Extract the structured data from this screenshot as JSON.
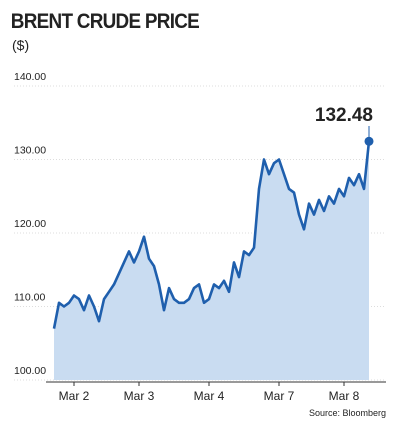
{
  "chart_data": {
    "type": "area",
    "title": "BRENT CRUDE PRICE",
    "subtitle": "($)",
    "source": "Source: Bloomberg",
    "categories": [
      null,
      null,
      null,
      null,
      "Mar 2",
      null,
      null,
      null,
      null,
      null,
      null,
      null,
      null,
      null,
      null,
      null,
      null,
      "Mar 3",
      null,
      null,
      null,
      null,
      null,
      null,
      null,
      null,
      null,
      null,
      null,
      null,
      null,
      "Mar 4",
      null,
      null,
      null,
      null,
      null,
      null,
      null,
      null,
      null,
      null,
      null,
      null,
      null,
      "Mar 7",
      null,
      null,
      null,
      null,
      null,
      null,
      null,
      null,
      null,
      null,
      null,
      null,
      "Mar 8",
      null,
      null,
      null,
      null,
      null
    ],
    "values": [
      107,
      110.5,
      110,
      110.5,
      111.5,
      111,
      109.5,
      111.5,
      110,
      108,
      111,
      112,
      113,
      114.5,
      116,
      117.5,
      116,
      117.5,
      119.5,
      116.5,
      115.5,
      113,
      109.5,
      112.5,
      111,
      110.5,
      110.5,
      111,
      112.5,
      113,
      110.5,
      111,
      113,
      112.5,
      113.5,
      112,
      116,
      114,
      117.5,
      117,
      118,
      126,
      130,
      128,
      129.5,
      130,
      128,
      126,
      125.5,
      122.5,
      120.5,
      124,
      122.5,
      124.5,
      123,
      125,
      124,
      126,
      125,
      127.5,
      126.5,
      128,
      126,
      132.48
    ],
    "color": "#1f5fad",
    "fill": "#c9dcf1",
    "ylim": [
      100,
      140
    ],
    "yticks": [
      {
        "value": 100,
        "label": "100.00"
      },
      {
        "value": 110,
        "label": "110.00"
      },
      {
        "value": 120,
        "label": "120.00"
      },
      {
        "value": 130,
        "label": "130.00"
      },
      {
        "value": 140,
        "label": "140.00"
      }
    ],
    "grid": true
  }
}
